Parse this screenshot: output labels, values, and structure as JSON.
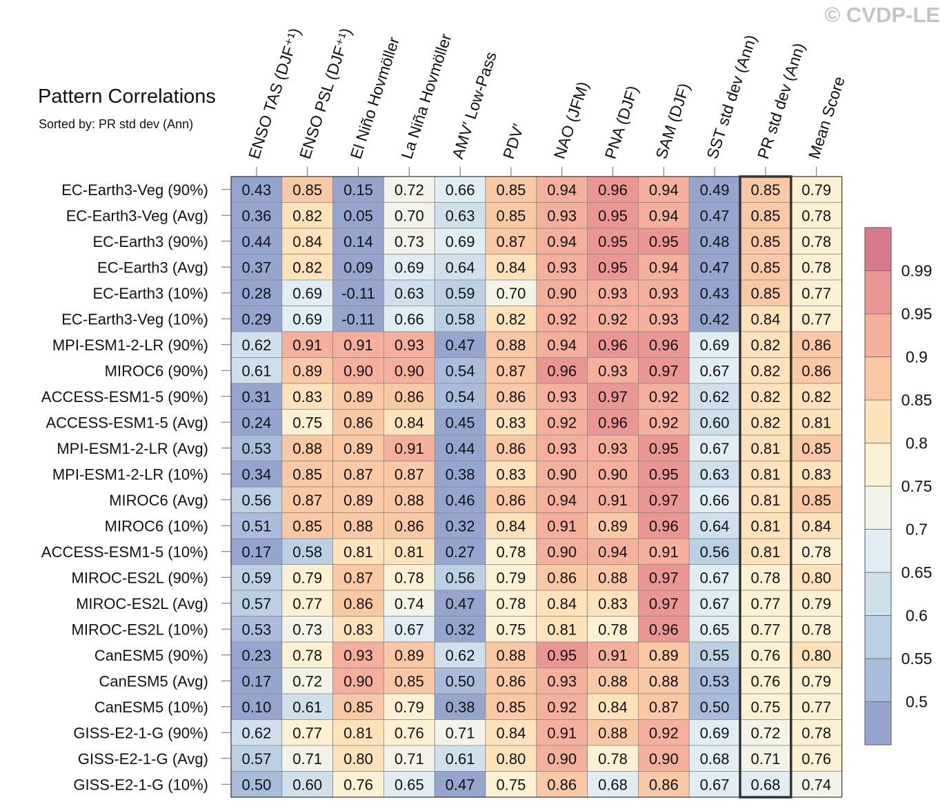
{
  "watermark": "© CVDP-LE",
  "chart_data": {
    "type": "heatmap",
    "title": "Pattern Correlations",
    "subtitle": "Sorted by: PR std dev (Ann)",
    "columns": [
      "ENSO TAS (DJF⁺¹)",
      "ENSO PSL (DJF⁺¹)",
      "El Niño Hovmöller",
      "La Niña Hovmöller",
      "AMV′ Low-Pass",
      "PDV′",
      "NAO (JFM)",
      "PNA (DJF)",
      "SAM (DJF)",
      "SST std dev (Ann)",
      "PR std dev (Ann)",
      "Mean Score"
    ],
    "rows": [
      "EC-Earth3-Veg (90%)",
      "EC-Earth3-Veg (Avg)",
      "EC-Earth3 (90%)",
      "EC-Earth3 (Avg)",
      "EC-Earth3 (10%)",
      "EC-Earth3-Veg (10%)",
      "MPI-ESM1-2-LR (90%)",
      "MIROC6 (90%)",
      "ACCESS-ESM1-5 (90%)",
      "ACCESS-ESM1-5 (Avg)",
      "MPI-ESM1-2-LR (Avg)",
      "MPI-ESM1-2-LR (10%)",
      "MIROC6 (Avg)",
      "MIROC6 (10%)",
      "ACCESS-ESM1-5 (10%)",
      "MIROC-ES2L (90%)",
      "MIROC-ES2L (Avg)",
      "MIROC-ES2L (10%)",
      "CanESM5 (90%)",
      "CanESM5 (Avg)",
      "CanESM5 (10%)",
      "GISS-E2-1-G (90%)",
      "GISS-E2-1-G (Avg)",
      "GISS-E2-1-G (10%)"
    ],
    "values": [
      [
        "0.43",
        "0.85",
        "0.15",
        "0.72",
        "0.66",
        "0.85",
        "0.94",
        "0.96",
        "0.94",
        "0.49",
        "0.85",
        "0.79"
      ],
      [
        "0.36",
        "0.82",
        "0.05",
        "0.70",
        "0.63",
        "0.85",
        "0.93",
        "0.95",
        "0.94",
        "0.47",
        "0.85",
        "0.78"
      ],
      [
        "0.44",
        "0.84",
        "0.14",
        "0.73",
        "0.69",
        "0.87",
        "0.94",
        "0.95",
        "0.95",
        "0.48",
        "0.85",
        "0.78"
      ],
      [
        "0.37",
        "0.82",
        "0.09",
        "0.69",
        "0.64",
        "0.84",
        "0.93",
        "0.95",
        "0.94",
        "0.47",
        "0.85",
        "0.78"
      ],
      [
        "0.28",
        "0.69",
        "-0.11",
        "0.63",
        "0.59",
        "0.70",
        "0.90",
        "0.93",
        "0.93",
        "0.43",
        "0.85",
        "0.77"
      ],
      [
        "0.29",
        "0.69",
        "-0.11",
        "0.66",
        "0.58",
        "0.82",
        "0.92",
        "0.92",
        "0.93",
        "0.42",
        "0.84",
        "0.77"
      ],
      [
        "0.62",
        "0.91",
        "0.91",
        "0.93",
        "0.47",
        "0.88",
        "0.94",
        "0.96",
        "0.96",
        "0.69",
        "0.82",
        "0.86"
      ],
      [
        "0.61",
        "0.89",
        "0.90",
        "0.90",
        "0.54",
        "0.87",
        "0.96",
        "0.93",
        "0.97",
        "0.67",
        "0.82",
        "0.86"
      ],
      [
        "0.31",
        "0.83",
        "0.89",
        "0.86",
        "0.54",
        "0.86",
        "0.93",
        "0.97",
        "0.92",
        "0.62",
        "0.82",
        "0.82"
      ],
      [
        "0.24",
        "0.75",
        "0.86",
        "0.84",
        "0.45",
        "0.83",
        "0.92",
        "0.96",
        "0.92",
        "0.60",
        "0.82",
        "0.81"
      ],
      [
        "0.53",
        "0.88",
        "0.89",
        "0.91",
        "0.44",
        "0.86",
        "0.93",
        "0.93",
        "0.95",
        "0.67",
        "0.81",
        "0.85"
      ],
      [
        "0.34",
        "0.85",
        "0.87",
        "0.87",
        "0.38",
        "0.83",
        "0.90",
        "0.90",
        "0.95",
        "0.63",
        "0.81",
        "0.83"
      ],
      [
        "0.56",
        "0.87",
        "0.89",
        "0.88",
        "0.46",
        "0.86",
        "0.94",
        "0.91",
        "0.97",
        "0.66",
        "0.81",
        "0.85"
      ],
      [
        "0.51",
        "0.85",
        "0.88",
        "0.86",
        "0.32",
        "0.84",
        "0.91",
        "0.89",
        "0.96",
        "0.64",
        "0.81",
        "0.84"
      ],
      [
        "0.17",
        "0.58",
        "0.81",
        "0.81",
        "0.27",
        "0.78",
        "0.90",
        "0.94",
        "0.91",
        "0.56",
        "0.81",
        "0.78"
      ],
      [
        "0.59",
        "0.79",
        "0.87",
        "0.78",
        "0.56",
        "0.79",
        "0.86",
        "0.88",
        "0.97",
        "0.67",
        "0.78",
        "0.80"
      ],
      [
        "0.57",
        "0.77",
        "0.86",
        "0.74",
        "0.47",
        "0.78",
        "0.84",
        "0.83",
        "0.97",
        "0.67",
        "0.77",
        "0.79"
      ],
      [
        "0.53",
        "0.73",
        "0.83",
        "0.67",
        "0.32",
        "0.75",
        "0.81",
        "0.78",
        "0.96",
        "0.65",
        "0.77",
        "0.78"
      ],
      [
        "0.23",
        "0.78",
        "0.93",
        "0.89",
        "0.62",
        "0.88",
        "0.95",
        "0.91",
        "0.89",
        "0.55",
        "0.76",
        "0.80"
      ],
      [
        "0.17",
        "0.72",
        "0.90",
        "0.85",
        "0.50",
        "0.86",
        "0.93",
        "0.88",
        "0.88",
        "0.53",
        "0.76",
        "0.79"
      ],
      [
        "0.10",
        "0.61",
        "0.85",
        "0.79",
        "0.38",
        "0.85",
        "0.92",
        "0.84",
        "0.87",
        "0.50",
        "0.75",
        "0.77"
      ],
      [
        "0.62",
        "0.77",
        "0.81",
        "0.76",
        "0.71",
        "0.84",
        "0.91",
        "0.88",
        "0.92",
        "0.69",
        "0.72",
        "0.78"
      ],
      [
        "0.57",
        "0.71",
        "0.80",
        "0.71",
        "0.61",
        "0.80",
        "0.90",
        "0.78",
        "0.90",
        "0.68",
        "0.71",
        "0.76"
      ],
      [
        "0.50",
        "0.60",
        "0.76",
        "0.65",
        "0.47",
        "0.75",
        "0.86",
        "0.68",
        "0.86",
        "0.67",
        "0.68",
        "0.74"
      ]
    ],
    "highlighted_column": "PR std dev (Ann)",
    "colorbar": {
      "levels": [
        0.5,
        0.55,
        0.6,
        0.65,
        0.7,
        0.75,
        0.8,
        0.85,
        0.9,
        0.95,
        0.99
      ],
      "tick_labels": [
        "0.5",
        "0.55",
        "0.6",
        "0.65",
        "0.7",
        "0.75",
        "0.8",
        "0.85",
        "0.9",
        "0.95",
        "0.99"
      ],
      "colors": [
        "#95a5ce",
        "#a9bcdb",
        "#bcd0e4",
        "#cfe0ec",
        "#e1edf3",
        "#f3f3ea",
        "#fdf0d3",
        "#fde2ba",
        "#f8c9a4",
        "#f4b09a",
        "#ea9692",
        "#d97a8c"
      ]
    }
  }
}
